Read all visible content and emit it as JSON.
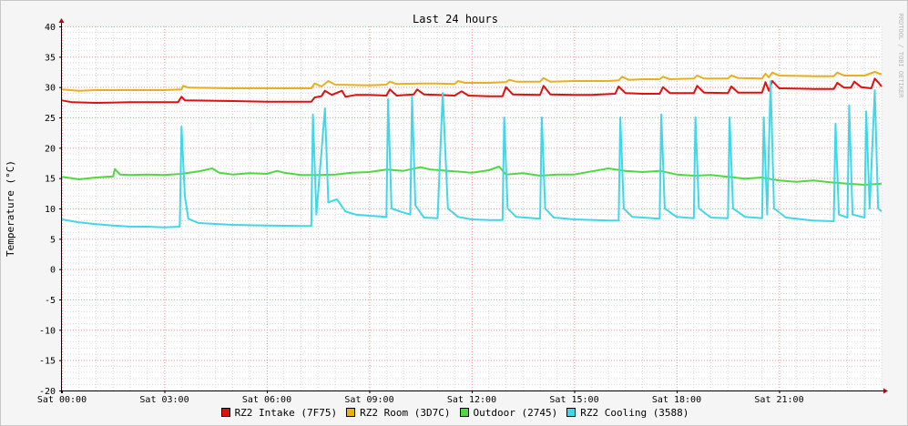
{
  "chart_data": {
    "type": "line",
    "title": "Last 24 hours",
    "ylabel": "Temperature (°C)",
    "watermark": "RRDTOOL / TOBI OETIKER",
    "ylim": [
      -20,
      40
    ],
    "yticks": [
      40,
      35,
      30,
      25,
      20,
      15,
      10,
      5,
      0,
      -5,
      -10,
      -15,
      -20
    ],
    "xlim_hours": [
      0,
      24
    ],
    "xticks": [
      {
        "hour": 0,
        "label": "Sat 00:00"
      },
      {
        "hour": 3,
        "label": "Sat 03:00"
      },
      {
        "hour": 6,
        "label": "Sat 06:00"
      },
      {
        "hour": 9,
        "label": "Sat 09:00"
      },
      {
        "hour": 12,
        "label": "Sat 12:00"
      },
      {
        "hour": 15,
        "label": "Sat 15:00"
      },
      {
        "hour": 18,
        "label": "Sat 18:00"
      },
      {
        "hour": 21,
        "label": "Sat 21:00"
      }
    ],
    "grid": true,
    "legend_position": "bottom",
    "series": [
      {
        "name": "RZ2 Intake (7F75)",
        "color": "#e01010",
        "points": [
          [
            0,
            27.8
          ],
          [
            0.3,
            27.5
          ],
          [
            1,
            27.4
          ],
          [
            2,
            27.5
          ],
          [
            3.4,
            27.5
          ],
          [
            3.5,
            28.4
          ],
          [
            3.6,
            27.8
          ],
          [
            5,
            27.7
          ],
          [
            6,
            27.6
          ],
          [
            7.3,
            27.6
          ],
          [
            7.4,
            28.3
          ],
          [
            7.6,
            28.5
          ],
          [
            7.7,
            29.4
          ],
          [
            7.9,
            28.7
          ],
          [
            8.2,
            29.4
          ],
          [
            8.3,
            28.4
          ],
          [
            8.6,
            28.7
          ],
          [
            9,
            28.7
          ],
          [
            9.5,
            28.6
          ],
          [
            9.6,
            29.6
          ],
          [
            9.8,
            28.6
          ],
          [
            10.3,
            28.8
          ],
          [
            10.4,
            29.6
          ],
          [
            10.6,
            28.8
          ],
          [
            11,
            28.7
          ],
          [
            11.5,
            28.6
          ],
          [
            11.7,
            29.3
          ],
          [
            11.9,
            28.6
          ],
          [
            12.5,
            28.5
          ],
          [
            12.9,
            28.5
          ],
          [
            13,
            30.0
          ],
          [
            13.2,
            28.8
          ],
          [
            14,
            28.7
          ],
          [
            14.1,
            30.2
          ],
          [
            14.3,
            28.8
          ],
          [
            15,
            28.7
          ],
          [
            15.5,
            28.7
          ],
          [
            16.2,
            28.9
          ],
          [
            16.3,
            30.1
          ],
          [
            16.5,
            29.0
          ],
          [
            17,
            28.9
          ],
          [
            17.5,
            28.9
          ],
          [
            17.6,
            30.0
          ],
          [
            17.8,
            29.0
          ],
          [
            18.5,
            29.0
          ],
          [
            18.6,
            30.2
          ],
          [
            18.8,
            29.1
          ],
          [
            19.5,
            29.0
          ],
          [
            19.6,
            30.1
          ],
          [
            19.8,
            29.1
          ],
          [
            20.5,
            29.1
          ],
          [
            20.6,
            30.8
          ],
          [
            20.7,
            29.4
          ],
          [
            20.8,
            31.0
          ],
          [
            21,
            29.8
          ],
          [
            22,
            29.7
          ],
          [
            22.6,
            29.7
          ],
          [
            22.7,
            30.7
          ],
          [
            22.9,
            29.9
          ],
          [
            23.1,
            29.9
          ],
          [
            23.2,
            30.9
          ],
          [
            23.4,
            30.0
          ],
          [
            23.7,
            29.8
          ],
          [
            23.8,
            31.4
          ],
          [
            23.9,
            30.8
          ],
          [
            24,
            30.1
          ]
        ]
      },
      {
        "name": "RZ2 Room (3D7C)",
        "color": "#e8b020",
        "points": [
          [
            0,
            29.6
          ],
          [
            0.5,
            29.4
          ],
          [
            1,
            29.5
          ],
          [
            2,
            29.5
          ],
          [
            3,
            29.5
          ],
          [
            3.5,
            29.6
          ],
          [
            3.55,
            30.2
          ],
          [
            3.7,
            29.9
          ],
          [
            5,
            29.8
          ],
          [
            6,
            29.8
          ],
          [
            7.3,
            29.8
          ],
          [
            7.4,
            30.6
          ],
          [
            7.6,
            30.1
          ],
          [
            7.8,
            31.0
          ],
          [
            8,
            30.4
          ],
          [
            9,
            30.3
          ],
          [
            9.5,
            30.4
          ],
          [
            9.6,
            30.9
          ],
          [
            9.8,
            30.5
          ],
          [
            10.5,
            30.6
          ],
          [
            11,
            30.6
          ],
          [
            11.5,
            30.5
          ],
          [
            11.6,
            31.0
          ],
          [
            11.8,
            30.7
          ],
          [
            12.5,
            30.7
          ],
          [
            13,
            30.8
          ],
          [
            13.1,
            31.2
          ],
          [
            13.3,
            30.9
          ],
          [
            14,
            30.9
          ],
          [
            14.1,
            31.5
          ],
          [
            14.3,
            30.9
          ],
          [
            15,
            31.0
          ],
          [
            16,
            31.0
          ],
          [
            16.3,
            31.1
          ],
          [
            16.4,
            31.7
          ],
          [
            16.6,
            31.2
          ],
          [
            17,
            31.3
          ],
          [
            17.5,
            31.3
          ],
          [
            17.6,
            31.7
          ],
          [
            17.8,
            31.3
          ],
          [
            18.5,
            31.4
          ],
          [
            18.6,
            31.9
          ],
          [
            18.8,
            31.4
          ],
          [
            19.5,
            31.4
          ],
          [
            19.6,
            31.9
          ],
          [
            19.8,
            31.5
          ],
          [
            20.5,
            31.4
          ],
          [
            20.6,
            32.2
          ],
          [
            20.7,
            31.6
          ],
          [
            20.8,
            32.4
          ],
          [
            21,
            31.9
          ],
          [
            22,
            31.8
          ],
          [
            22.6,
            31.8
          ],
          [
            22.7,
            32.4
          ],
          [
            22.9,
            31.9
          ],
          [
            23.5,
            31.9
          ],
          [
            23.8,
            32.5
          ],
          [
            24,
            32.1
          ]
        ]
      },
      {
        "name": "Outdoor (2745)",
        "color": "#50d840",
        "points": [
          [
            0,
            15.2
          ],
          [
            0.5,
            14.8
          ],
          [
            1,
            15.1
          ],
          [
            1.5,
            15.3
          ],
          [
            1.55,
            16.5
          ],
          [
            1.7,
            15.6
          ],
          [
            2,
            15.5
          ],
          [
            2.5,
            15.6
          ],
          [
            3,
            15.5
          ],
          [
            3.5,
            15.7
          ],
          [
            4,
            16.1
          ],
          [
            4.4,
            16.6
          ],
          [
            4.6,
            15.9
          ],
          [
            5,
            15.6
          ],
          [
            5.5,
            15.8
          ],
          [
            6,
            15.7
          ],
          [
            6.3,
            16.2
          ],
          [
            6.5,
            15.9
          ],
          [
            7,
            15.5
          ],
          [
            7.5,
            15.5
          ],
          [
            8,
            15.6
          ],
          [
            8.5,
            15.9
          ],
          [
            9,
            16.0
          ],
          [
            9.5,
            16.4
          ],
          [
            10,
            16.2
          ],
          [
            10.5,
            16.8
          ],
          [
            10.8,
            16.4
          ],
          [
            11.5,
            16.1
          ],
          [
            12,
            15.9
          ],
          [
            12.5,
            16.3
          ],
          [
            12.8,
            16.9
          ],
          [
            13,
            15.6
          ],
          [
            13.5,
            15.8
          ],
          [
            14,
            15.4
          ],
          [
            14.5,
            15.6
          ],
          [
            15,
            15.6
          ],
          [
            15.5,
            16.1
          ],
          [
            16,
            16.6
          ],
          [
            16.5,
            16.2
          ],
          [
            17,
            16.0
          ],
          [
            17.5,
            16.2
          ],
          [
            18,
            15.6
          ],
          [
            18.5,
            15.4
          ],
          [
            19,
            15.5
          ],
          [
            19.5,
            15.2
          ],
          [
            20,
            14.9
          ],
          [
            20.5,
            15.1
          ],
          [
            21,
            14.6
          ],
          [
            21.5,
            14.4
          ],
          [
            22,
            14.6
          ],
          [
            22.5,
            14.3
          ],
          [
            23,
            14.1
          ],
          [
            23.5,
            13.9
          ],
          [
            24,
            14.1
          ]
        ]
      },
      {
        "name": "RZ2 Cooling (3588)",
        "color": "#40d8e8",
        "points": [
          [
            0,
            8.2
          ],
          [
            0.5,
            7.7
          ],
          [
            1,
            7.4
          ],
          [
            1.5,
            7.2
          ],
          [
            2,
            7.0
          ],
          [
            2.5,
            7.0
          ],
          [
            3,
            6.9
          ],
          [
            3.45,
            7.0
          ],
          [
            3.5,
            23.5
          ],
          [
            3.6,
            12.0
          ],
          [
            3.7,
            8.3
          ],
          [
            4,
            7.6
          ],
          [
            5,
            7.3
          ],
          [
            6,
            7.2
          ],
          [
            7,
            7.1
          ],
          [
            7.3,
            7.1
          ],
          [
            7.35,
            25.5
          ],
          [
            7.45,
            9.0
          ],
          [
            7.7,
            26.5
          ],
          [
            7.8,
            11.0
          ],
          [
            8.05,
            11.5
          ],
          [
            8.3,
            9.5
          ],
          [
            8.6,
            9.0
          ],
          [
            9,
            8.8
          ],
          [
            9.5,
            8.6
          ],
          [
            9.55,
            28.0
          ],
          [
            9.65,
            10.0
          ],
          [
            9.9,
            9.5
          ],
          [
            10.2,
            9.0
          ],
          [
            10.25,
            28.5
          ],
          [
            10.35,
            10.5
          ],
          [
            10.6,
            8.5
          ],
          [
            11,
            8.4
          ],
          [
            11.15,
            29.0
          ],
          [
            11.3,
            10.0
          ],
          [
            11.6,
            8.6
          ],
          [
            12,
            8.2
          ],
          [
            12.5,
            8.1
          ],
          [
            12.9,
            8.1
          ],
          [
            12.95,
            25.0
          ],
          [
            13.05,
            10.0
          ],
          [
            13.3,
            8.6
          ],
          [
            14,
            8.3
          ],
          [
            14.05,
            25.0
          ],
          [
            14.15,
            10.0
          ],
          [
            14.4,
            8.5
          ],
          [
            15,
            8.2
          ],
          [
            16,
            8.0
          ],
          [
            16.3,
            8.0
          ],
          [
            16.35,
            25.0
          ],
          [
            16.45,
            10.0
          ],
          [
            16.7,
            8.6
          ],
          [
            17.5,
            8.3
          ],
          [
            17.55,
            25.5
          ],
          [
            17.65,
            10.0
          ],
          [
            18,
            8.6
          ],
          [
            18.5,
            8.4
          ],
          [
            18.55,
            25.0
          ],
          [
            18.65,
            10.0
          ],
          [
            19,
            8.5
          ],
          [
            19.5,
            8.4
          ],
          [
            19.55,
            25.0
          ],
          [
            19.65,
            10.0
          ],
          [
            20,
            8.6
          ],
          [
            20.5,
            8.4
          ],
          [
            20.55,
            25.0
          ],
          [
            20.65,
            9.0
          ],
          [
            20.75,
            31.0
          ],
          [
            20.85,
            10.0
          ],
          [
            21.2,
            8.5
          ],
          [
            22,
            8.0
          ],
          [
            22.6,
            7.9
          ],
          [
            22.65,
            24.0
          ],
          [
            22.75,
            9.0
          ],
          [
            23,
            8.5
          ],
          [
            23.05,
            27.0
          ],
          [
            23.15,
            9.0
          ],
          [
            23.5,
            8.5
          ],
          [
            23.55,
            26.0
          ],
          [
            23.65,
            10.0
          ],
          [
            23.8,
            29.5
          ],
          [
            23.9,
            10.0
          ],
          [
            24,
            9.5
          ]
        ]
      }
    ]
  },
  "plot_background": "#ffffff",
  "canvas_background": "#f5f5f5",
  "grid_color": "#ff9c9c"
}
